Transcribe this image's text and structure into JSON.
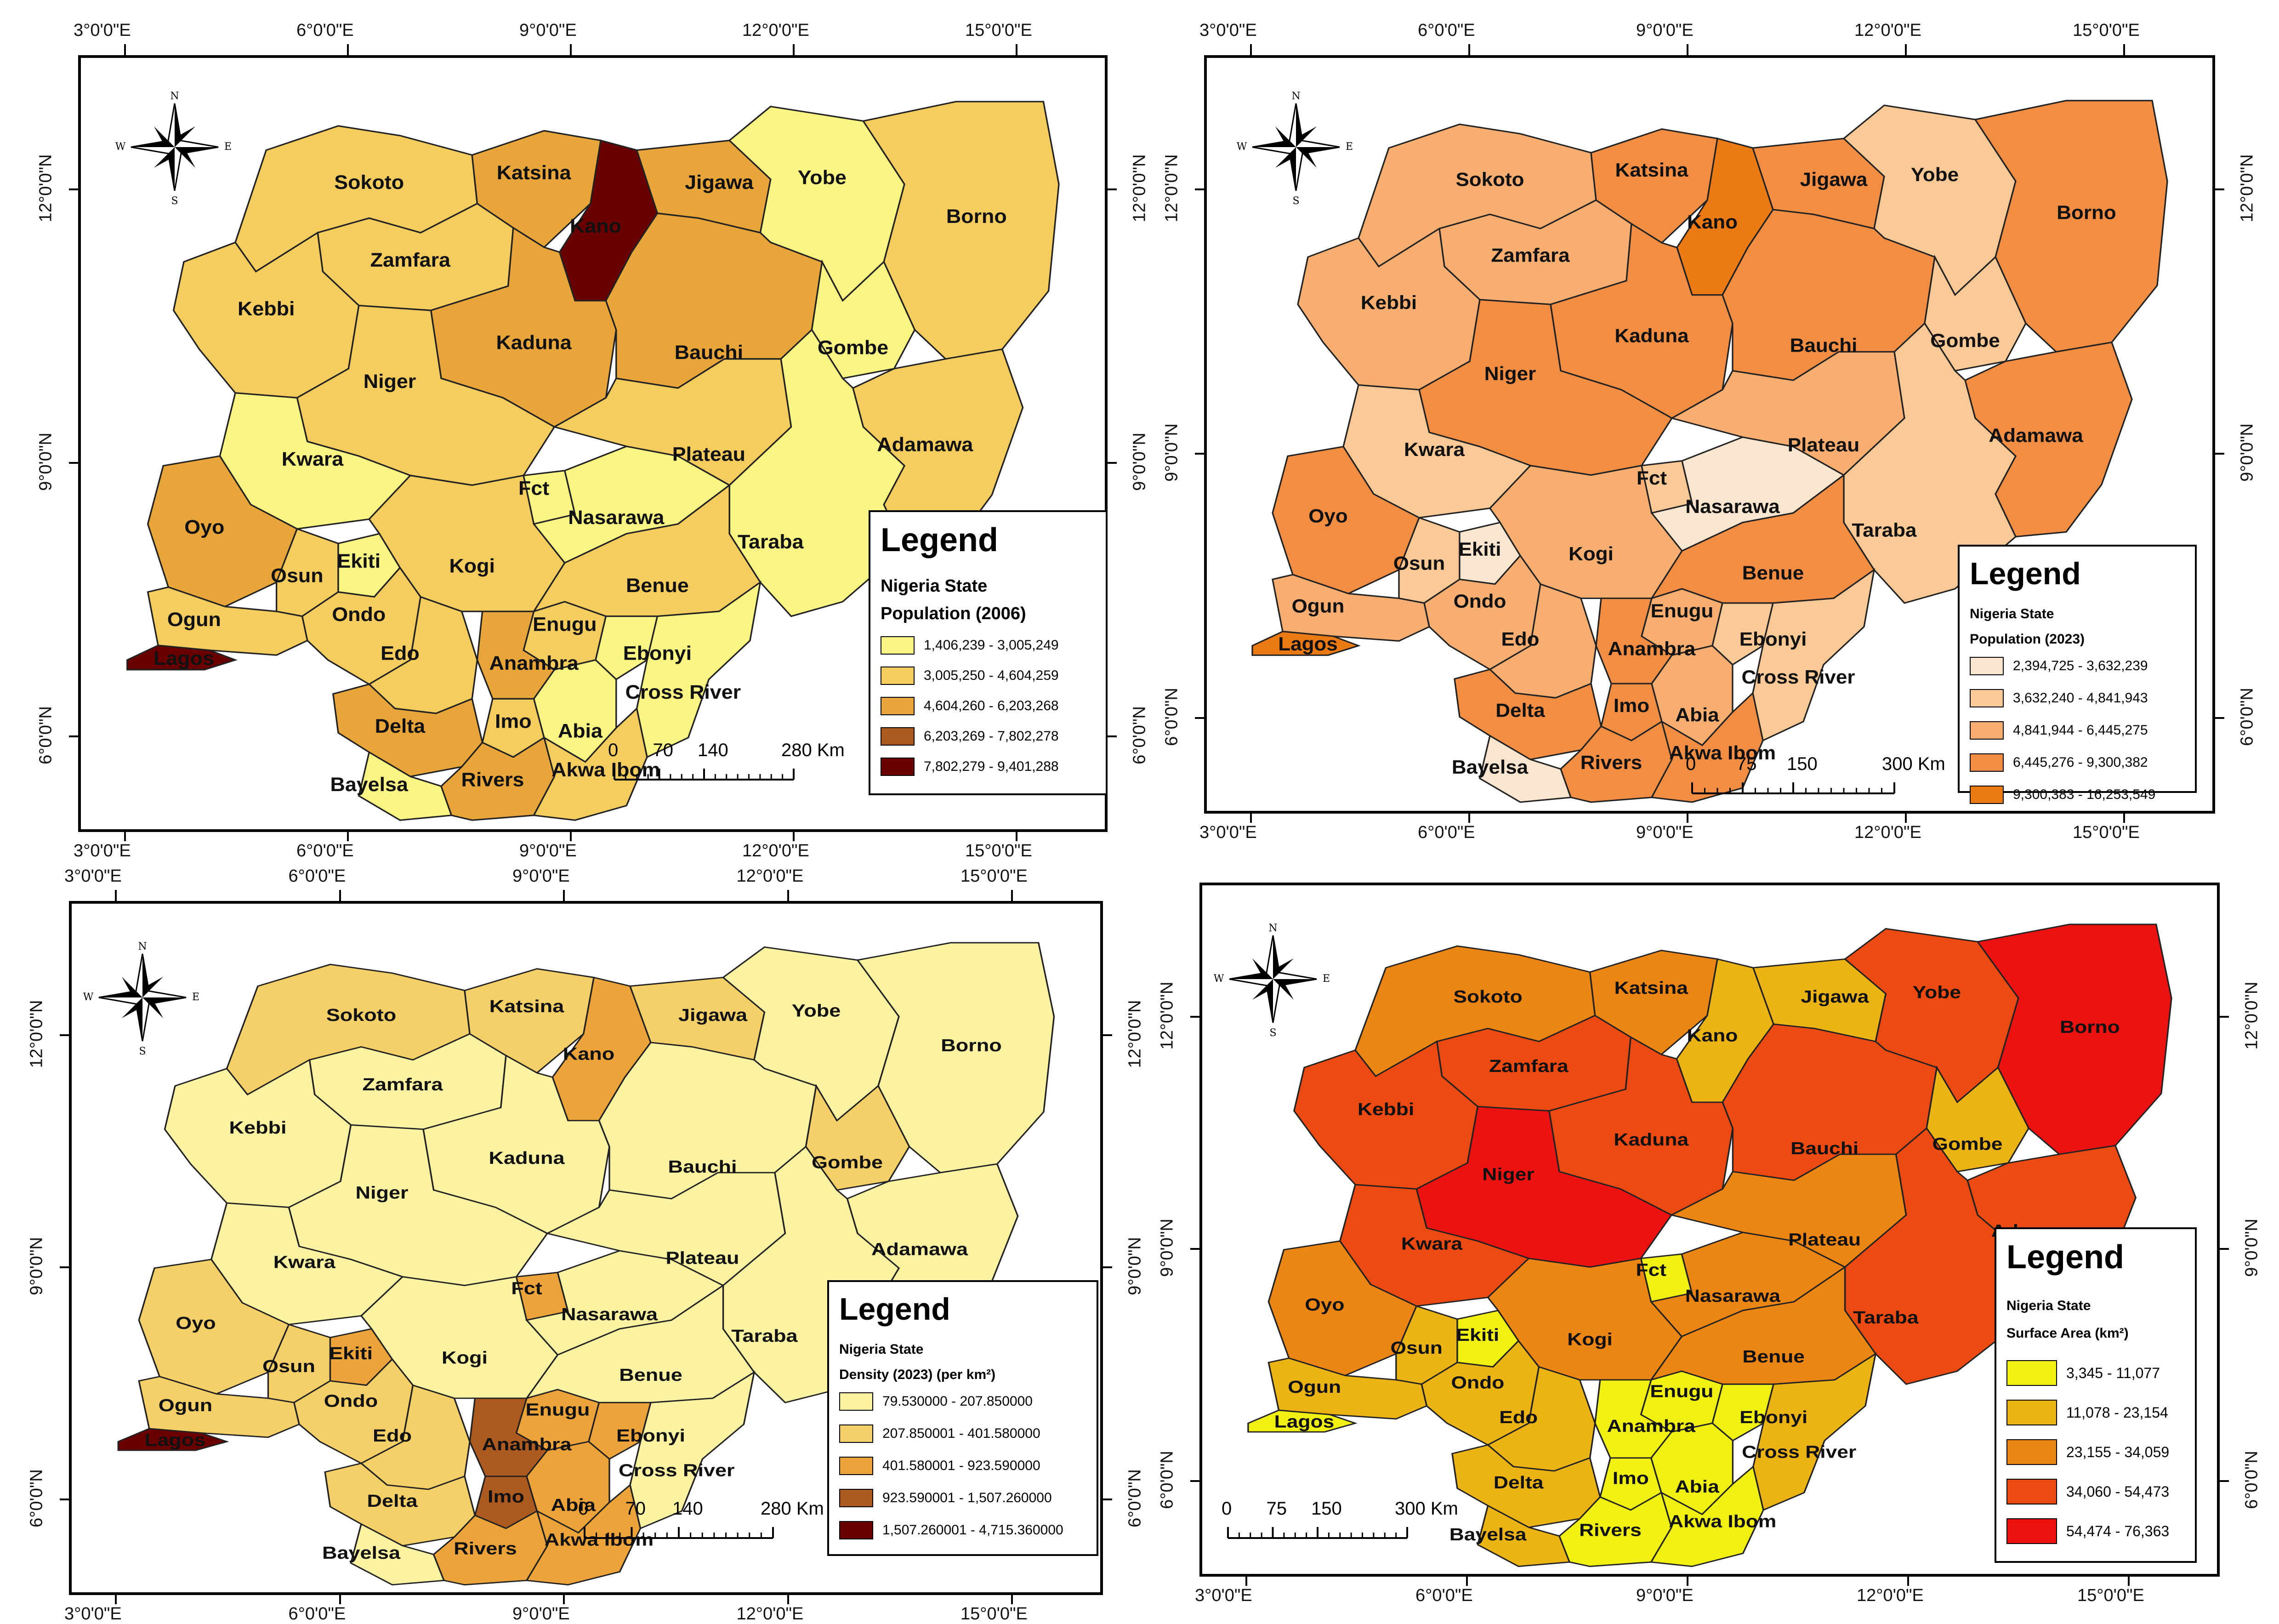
{
  "panels": [
    {
      "top_coords": [
        "3°0'0\"E",
        "6°0'0\"E",
        "9°0'0\"E",
        "12°0'0\"E",
        "15°0'0\"E"
      ],
      "bottom_coords": [
        "3°0'0\"E",
        "6°0'0\"E",
        "9°0'0\"E",
        "12°0'0\"E",
        "15°0'0\"E"
      ],
      "side_coords": [
        "12°0'0\"N",
        "9°0'0\"N",
        "6°0'0\"N"
      ],
      "legend": {
        "heading": "Legend",
        "subtitle1": "Nigeria State",
        "subtitle2": "Population (2006)",
        "classes": [
          {
            "label": "1,406,239 - 3,005,249",
            "color": "#fbf584"
          },
          {
            "label": "3,005,250 - 4,604,259",
            "color": "#f5cc5e"
          },
          {
            "label": "4,604,260 - 6,203,268",
            "color": "#e8a53a"
          },
          {
            "label": "6,203,269 - 7,802,278",
            "color": "#ad5a20"
          },
          {
            "label": "7,802,279 - 9,401,288",
            "color": "#6b0000"
          }
        ]
      },
      "scale": [
        "0",
        "70",
        "140",
        "280 Km"
      ],
      "state_classes": {
        "Sokoto": 1,
        "Zamfara": 1,
        "Kebbi": 1,
        "Katsina": 2,
        "Kano": 4,
        "Jigawa": 2,
        "Yobe": 0,
        "Borno": 1,
        "Kaduna": 2,
        "Bauchi": 2,
        "Gombe": 0,
        "Niger": 1,
        "Kwara": 0,
        "Oyo": 2,
        "Osun": 1,
        "Ekiti": 0,
        "Ondo": 1,
        "Ogun": 1,
        "Lagos": 4,
        "Edo": 1,
        "Kogi": 1,
        "Fct": 0,
        "Nasarawa": 0,
        "Plateau": 1,
        "Adamawa": 1,
        "Taraba": 0,
        "Benue": 1,
        "Enugu": 1,
        "Ebonyi": 0,
        "Anambra": 2,
        "Cross River": 0,
        "Imo": 1,
        "Abia": 0,
        "Delta": 2,
        "Bayelsa": 0,
        "Rivers": 2,
        "Akwa Ibom": 1
      }
    },
    {
      "top_coords": [
        "3°0'0\"E",
        "6°0'0\"E",
        "9°0'0\"E",
        "12°0'0\"E",
        "15°0'0\"E"
      ],
      "bottom_coords": [
        "3°0'0\"E",
        "6°0'0\"E",
        "9°0'0\"E",
        "12°0'0\"E",
        "15°0'0\"E"
      ],
      "side_coords": [
        "12°0'0\"N",
        "9°0'0\"N",
        "6°0'0\"N"
      ],
      "legend": {
        "heading": "Legend",
        "subtitle1": "Nigeria State",
        "subtitle2": "Population (2023)",
        "classes": [
          {
            "label": "2,394,725 - 3,632,239",
            "color": "#fde6cf"
          },
          {
            "label": "3,632,240 - 4,841,943",
            "color": "#fbc995"
          },
          {
            "label": "4,841,944 - 6,445,275",
            "color": "#f8ae70"
          },
          {
            "label": "6,445,276 - 9,300,382",
            "color": "#f28e43"
          },
          {
            "label": "9,300,383 - 16,253,549",
            "color": "#ec7a14"
          }
        ]
      },
      "scale": [
        "0",
        "75",
        "150",
        "300 Km"
      ],
      "state_classes": {
        "Sokoto": 2,
        "Zamfara": 2,
        "Kebbi": 2,
        "Katsina": 3,
        "Kano": 4,
        "Jigawa": 3,
        "Yobe": 1,
        "Borno": 3,
        "Kaduna": 3,
        "Bauchi": 3,
        "Gombe": 1,
        "Niger": 3,
        "Kwara": 1,
        "Oyo": 3,
        "Osun": 1,
        "Ekiti": 0,
        "Ondo": 2,
        "Ogun": 2,
        "Lagos": 4,
        "Edo": 2,
        "Kogi": 2,
        "Fct": 1,
        "Nasarawa": 0,
        "Plateau": 2,
        "Adamawa": 3,
        "Taraba": 1,
        "Benue": 3,
        "Enugu": 2,
        "Ebonyi": 1,
        "Anambra": 3,
        "Cross River": 1,
        "Imo": 3,
        "Abia": 2,
        "Delta": 3,
        "Bayelsa": 0,
        "Rivers": 3,
        "Akwa Ibom": 3
      }
    },
    {
      "top_coords": [
        "3°0'0\"E",
        "6°0'0\"E",
        "9°0'0\"E",
        "12°0'0\"E",
        "15°0'0\"E"
      ],
      "bottom_coords": [
        "3°0'0\"E",
        "6°0'0\"E",
        "9°0'0\"E",
        "12°0'0\"E",
        "15°0'0\"E"
      ],
      "side_coords": [
        "12°0'0\"N",
        "9°0'0\"N",
        "6°0'0\"N"
      ],
      "legend": {
        "heading": "Legend",
        "subtitle1": "Nigeria State",
        "subtitle2": "Density (2023) (per km²)",
        "classes": [
          {
            "label": "79.530000 - 207.850000",
            "color": "#fbf3a2"
          },
          {
            "label": "207.850001 - 401.580000",
            "color": "#f5cf68"
          },
          {
            "label": "401.580001 - 923.590000",
            "color": "#eca43a"
          },
          {
            "label": "923.590001 - 1,507.260000",
            "color": "#ad5a20"
          },
          {
            "label": "1,507.260001 - 4,715.360000",
            "color": "#6b0000"
          }
        ]
      },
      "scale": [
        "0",
        "70",
        "140",
        "280 Km"
      ],
      "state_classes": {
        "Sokoto": 1,
        "Zamfara": 0,
        "Kebbi": 0,
        "Katsina": 1,
        "Kano": 2,
        "Jigawa": 1,
        "Yobe": 0,
        "Borno": 0,
        "Kaduna": 0,
        "Bauchi": 0,
        "Gombe": 1,
        "Niger": 0,
        "Kwara": 0,
        "Oyo": 1,
        "Osun": 1,
        "Ekiti": 2,
        "Ondo": 1,
        "Ogun": 1,
        "Lagos": 4,
        "Edo": 1,
        "Kogi": 0,
        "Fct": 2,
        "Nasarawa": 0,
        "Plateau": 0,
        "Adamawa": 0,
        "Taraba": 0,
        "Benue": 0,
        "Enugu": 2,
        "Ebonyi": 2,
        "Anambra": 3,
        "Cross River": 0,
        "Imo": 3,
        "Abia": 2,
        "Delta": 1,
        "Bayelsa": 0,
        "Rivers": 2,
        "Akwa Ibom": 2
      }
    },
    {
      "top_coords": [],
      "bottom_coords": [
        "3°0'0\"E",
        "6°0'0\"E",
        "9°0'0\"E",
        "12°0'0\"E",
        "15°0'0\"E"
      ],
      "side_coords": [
        "12°0'0\"N",
        "9°0'0\"N",
        "6°0'0\"N"
      ],
      "legend": {
        "heading": "Legend",
        "subtitle1": "Nigeria State",
        "subtitle2": "Surface Area (km²)",
        "classes": [
          {
            "label": "3,345 - 11,077",
            "color": "#f0f012"
          },
          {
            "label": "11,078 - 23,154",
            "color": "#ebb414"
          },
          {
            "label": "23,155 - 34,059",
            "color": "#eb8514"
          },
          {
            "label": "34,060 - 54,473",
            "color": "#eb4a12"
          },
          {
            "label": "54,474 - 76,363",
            "color": "#ec1212"
          }
        ]
      },
      "scale": [
        "0",
        "75",
        "150",
        "300 Km"
      ],
      "state_classes": {
        "Sokoto": 2,
        "Zamfara": 3,
        "Kebbi": 3,
        "Katsina": 2,
        "Kano": 1,
        "Jigawa": 1,
        "Yobe": 3,
        "Borno": 4,
        "Kaduna": 3,
        "Bauchi": 3,
        "Gombe": 1,
        "Niger": 4,
        "Kwara": 3,
        "Oyo": 2,
        "Osun": 1,
        "Ekiti": 0,
        "Ondo": 1,
        "Ogun": 1,
        "Lagos": 0,
        "Edo": 1,
        "Kogi": 2,
        "Fct": 0,
        "Nasarawa": 2,
        "Plateau": 2,
        "Adamawa": 3,
        "Taraba": 3,
        "Benue": 2,
        "Enugu": 0,
        "Ebonyi": 0,
        "Anambra": 0,
        "Cross River": 1,
        "Imo": 0,
        "Abia": 0,
        "Delta": 1,
        "Bayelsa": 1,
        "Rivers": 0,
        "Akwa Ibom": 0
      }
    }
  ],
  "north_arrow": {
    "n": "N",
    "s": "S",
    "e": "E",
    "w": "W"
  },
  "state_names": [
    "Sokoto",
    "Zamfara",
    "Kebbi",
    "Katsina",
    "Kano",
    "Jigawa",
    "Yobe",
    "Borno",
    "Kaduna",
    "Bauchi",
    "Gombe",
    "Niger",
    "Kwara",
    "Oyo",
    "Osun",
    "Ekiti",
    "Ondo",
    "Ogun",
    "Lagos",
    "Edo",
    "Kogi",
    "Fct",
    "Nasarawa",
    "Plateau",
    "Adamawa",
    "Taraba",
    "Benue",
    "Enugu",
    "Ebonyi",
    "Anambra",
    "Cross River",
    "Imo",
    "Abia",
    "Delta",
    "Bayelsa",
    "Rivers",
    "Akwa Ibom"
  ]
}
